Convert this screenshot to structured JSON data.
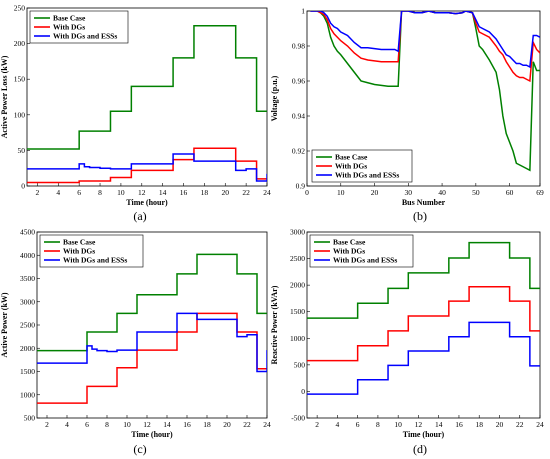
{
  "colors": {
    "base_case": "#008000",
    "with_dgs": "#ff0000",
    "with_dgs_and_esss": "#0000ff"
  },
  "chart_data": [
    {
      "id": "a",
      "type": "line",
      "step": true,
      "caption": "(a)",
      "xlabel": "Time (hour)",
      "ylabel": "Active Power Loss (kW)",
      "xlim": [
        1,
        24
      ],
      "ylim": [
        0,
        250
      ],
      "xticks": [
        2,
        4,
        6,
        8,
        10,
        12,
        14,
        16,
        18,
        20,
        22,
        24
      ],
      "yticks": [
        0,
        50,
        100,
        150,
        200,
        250
      ],
      "legend": "top-left",
      "x": [
        1,
        6,
        9,
        11,
        15,
        17,
        21,
        23,
        24
      ],
      "series": [
        {
          "name": "Base Case",
          "color": "#008000",
          "values": [
            52,
            77,
            105,
            140,
            180,
            225,
            180,
            105,
            105
          ]
        },
        {
          "name": "With DGs",
          "color": "#ff0000",
          "values": [
            5,
            7,
            12,
            22,
            37,
            53,
            35,
            10,
            10
          ]
        },
        {
          "name": "With DGs and ESSs",
          "color": "#0000ff",
          "x": [
            1,
            6,
            6.5,
            7,
            8,
            9,
            11,
            15,
            17,
            21,
            22,
            23,
            24
          ],
          "values": [
            24,
            31,
            27,
            26,
            25,
            24,
            31,
            45,
            35,
            22,
            24,
            7,
            17
          ]
        }
      ]
    },
    {
      "id": "b",
      "type": "line",
      "caption": "(b)",
      "xlabel": "Bus Number",
      "ylabel": "Voltage (p.u.)",
      "xlim": [
        0,
        69
      ],
      "ylim": [
        0.9,
        1.0
      ],
      "xticks": [
        0,
        10,
        20,
        30,
        40,
        50,
        60,
        69
      ],
      "yticks": [
        0.9,
        0.92,
        0.94,
        0.96,
        0.98,
        1
      ],
      "legend": "bottom-left",
      "series": [
        {
          "name": "Base Case",
          "color": "#008000",
          "x": [
            1,
            3,
            4,
            5,
            6,
            7,
            8,
            9,
            10,
            12,
            14,
            16,
            18,
            20,
            22,
            24,
            26,
            27,
            28,
            30,
            32,
            34,
            36,
            38,
            40,
            42,
            44,
            46,
            47,
            48,
            49,
            50,
            51,
            52,
            54,
            56,
            57,
            58,
            59,
            60,
            61,
            62,
            63,
            64,
            65,
            66,
            67,
            68,
            69
          ],
          "values": [
            1.0,
            1.0,
            0.999,
            0.997,
            0.993,
            0.985,
            0.98,
            0.977,
            0.975,
            0.97,
            0.965,
            0.96,
            0.959,
            0.958,
            0.9575,
            0.957,
            0.957,
            0.957,
            1.0,
            1.0,
            0.999,
            0.999,
            1.0,
            0.999,
            0.999,
            0.999,
            0.9985,
            0.999,
            1.0,
            0.9995,
            0.999,
            0.99,
            0.98,
            0.978,
            0.972,
            0.965,
            0.955,
            0.94,
            0.93,
            0.925,
            0.92,
            0.913,
            0.912,
            0.911,
            0.91,
            0.909,
            0.971,
            0.966,
            0.966
          ]
        },
        {
          "name": "With DGs",
          "color": "#ff0000",
          "x": [
            1,
            3,
            4,
            5,
            6,
            7,
            8,
            9,
            10,
            12,
            14,
            16,
            18,
            20,
            22,
            24,
            26,
            27,
            28,
            30,
            32,
            34,
            36,
            38,
            40,
            42,
            44,
            46,
            47,
            48,
            49,
            50,
            51,
            52,
            54,
            56,
            57,
            58,
            59,
            60,
            61,
            62,
            63,
            64,
            65,
            66,
            67,
            68,
            69
          ],
          "values": [
            1.0,
            1.0,
            0.999,
            0.998,
            0.995,
            0.99,
            0.987,
            0.985,
            0.983,
            0.98,
            0.976,
            0.973,
            0.972,
            0.9715,
            0.971,
            0.971,
            0.971,
            0.971,
            1.0,
            1.0,
            0.999,
            0.999,
            1.0,
            0.999,
            0.999,
            0.999,
            0.9985,
            0.999,
            1.0,
            0.9995,
            0.999,
            0.993,
            0.988,
            0.987,
            0.985,
            0.98,
            0.977,
            0.975,
            0.971,
            0.968,
            0.965,
            0.963,
            0.962,
            0.962,
            0.961,
            0.96,
            0.982,
            0.978,
            0.976
          ]
        },
        {
          "name": "With DGs and ESSs",
          "color": "#0000ff",
          "x": [
            1,
            3,
            4,
            5,
            6,
            7,
            8,
            9,
            10,
            12,
            14,
            16,
            18,
            20,
            22,
            24,
            26,
            27,
            28,
            30,
            32,
            34,
            36,
            38,
            40,
            42,
            44,
            46,
            47,
            48,
            49,
            50,
            51,
            52,
            54,
            56,
            57,
            58,
            59,
            60,
            61,
            62,
            63,
            64,
            65,
            66,
            67,
            68,
            69
          ],
          "values": [
            1.0,
            1.0,
            1.0,
            0.999,
            0.997,
            0.993,
            0.991,
            0.99,
            0.988,
            0.986,
            0.982,
            0.979,
            0.979,
            0.9785,
            0.978,
            0.978,
            0.978,
            0.977,
            1.0,
            1.0,
            0.999,
            0.999,
            1.0,
            0.999,
            0.999,
            0.999,
            0.9985,
            0.999,
            1.0,
            0.9995,
            0.999,
            0.995,
            0.991,
            0.99,
            0.988,
            0.984,
            0.981,
            0.978,
            0.975,
            0.974,
            0.972,
            0.97,
            0.97,
            0.969,
            0.969,
            0.968,
            0.986,
            0.986,
            0.985
          ]
        }
      ]
    },
    {
      "id": "c",
      "type": "line",
      "step": true,
      "caption": "(c)",
      "xlabel": "Time (hour)",
      "ylabel": "Active Power (kW)",
      "xlim": [
        1,
        24
      ],
      "ylim": [
        500,
        4500
      ],
      "xticks": [
        2,
        4,
        6,
        8,
        10,
        12,
        14,
        16,
        18,
        20,
        22,
        24
      ],
      "yticks": [
        500,
        1000,
        1500,
        2000,
        2500,
        3000,
        3500,
        4000,
        4500
      ],
      "legend": "top-left",
      "x": [
        1,
        6,
        9,
        11,
        15,
        17,
        21,
        23,
        24
      ],
      "series": [
        {
          "name": "Base Case",
          "color": "#008000",
          "values": [
            1950,
            2350,
            2750,
            3150,
            3600,
            4020,
            3600,
            2750,
            2750
          ]
        },
        {
          "name": "With DGs",
          "color": "#ff0000",
          "values": [
            820,
            1180,
            1580,
            1960,
            2350,
            2750,
            2350,
            1560,
            1560
          ]
        },
        {
          "name": "With DGs and ESSs",
          "color": "#0000ff",
          "x": [
            1,
            6,
            6.5,
            7,
            8,
            9,
            11,
            15,
            17,
            21,
            22,
            23,
            24
          ],
          "values": [
            1680,
            2050,
            1980,
            1950,
            1930,
            1960,
            2350,
            2750,
            2620,
            2250,
            2290,
            1500,
            1960
          ]
        }
      ]
    },
    {
      "id": "d",
      "type": "line",
      "step": true,
      "caption": "(d)",
      "xlabel": "Time (hour)",
      "ylabel": "Reactive Power (kVAr)",
      "xlim": [
        1,
        24
      ],
      "ylim": [
        -500,
        3000
      ],
      "xticks": [
        2,
        4,
        6,
        8,
        10,
        12,
        14,
        16,
        18,
        20,
        22,
        24
      ],
      "yticks": [
        -500,
        0,
        500,
        1000,
        1500,
        2000,
        2500,
        3000
      ],
      "legend": "top-left",
      "x": [
        1,
        6,
        9,
        11,
        15,
        17,
        21,
        23,
        24
      ],
      "series": [
        {
          "name": "Base Case",
          "color": "#008000",
          "values": [
            1380,
            1660,
            1940,
            2230,
            2510,
            2800,
            2510,
            1940,
            1940
          ]
        },
        {
          "name": "With DGs",
          "color": "#ff0000",
          "values": [
            580,
            860,
            1140,
            1420,
            1700,
            1970,
            1700,
            1140,
            1140
          ]
        },
        {
          "name": "With DGs and ESSs",
          "color": "#0000ff",
          "values": [
            -50,
            220,
            490,
            760,
            1030,
            1300,
            1030,
            480,
            480
          ]
        }
      ]
    }
  ]
}
